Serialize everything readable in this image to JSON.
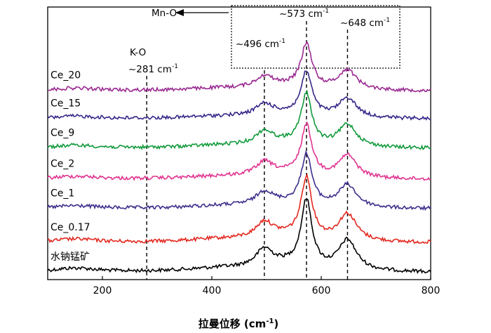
{
  "chart_data": {
    "type": "line",
    "title": "",
    "xlabel": "拉曼位移 (cm",
    "xlabel_sup": "-1",
    "xlabel_close": ")",
    "ylabel": "",
    "xlim": [
      100,
      800
    ],
    "xticks": [
      200,
      400,
      600,
      800
    ],
    "xtick_labels": [
      "200",
      "400",
      "600",
      "800"
    ],
    "series": [
      {
        "name": "水钠锰矿",
        "color": "#000000",
        "baseline": 0.0,
        "amp": 1.0
      },
      {
        "name": "Ce_0.17",
        "color": "#e3281f",
        "baseline": 1.0,
        "amp": 0.9
      },
      {
        "name": "Ce_1",
        "color": "#3c2f8c",
        "baseline": 2.15,
        "amp": 0.75
      },
      {
        "name": "Ce_2",
        "color": "#e0338f",
        "baseline": 3.15,
        "amp": 0.75
      },
      {
        "name": "Ce_9",
        "color": "#119a3b",
        "baseline": 4.2,
        "amp": 0.75
      },
      {
        "name": "Ce_15",
        "color": "#34288a",
        "baseline": 5.2,
        "amp": 0.65
      },
      {
        "name": "Ce_20",
        "color": "#9a2a92",
        "baseline": 6.15,
        "amp": 0.65
      }
    ],
    "peaks_cm": [
      281,
      496,
      573,
      648
    ],
    "annotations": {
      "mno_label": "Mn-O",
      "ko_label": "K-O",
      "ko_value": "~281 cm",
      "p496": "~496 cm",
      "p573": "~573 cm",
      "p648": "~648 cm",
      "sup": "-1"
    }
  }
}
